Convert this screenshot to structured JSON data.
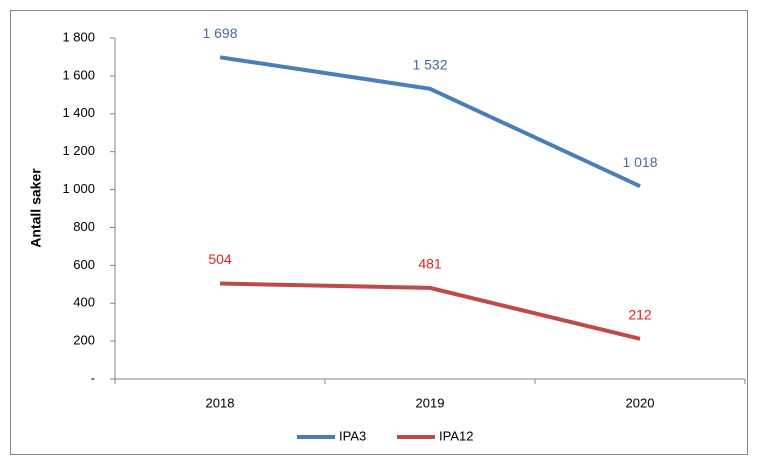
{
  "chart_data": {
    "type": "line",
    "y_label": "Antall saker",
    "categories": [
      "2018",
      "2019",
      "2020"
    ],
    "series": [
      {
        "name": "IPA3",
        "color": "#4a7ebb",
        "label_color": "#4a6a9a",
        "values": [
          1698,
          1532,
          1018
        ],
        "value_labels": [
          "1 698",
          "1 532",
          "1 018"
        ]
      },
      {
        "name": "IPA12",
        "color": "#be4b48",
        "label_color": "#e02020",
        "values": [
          504,
          481,
          212
        ],
        "value_labels": [
          "504",
          "481",
          "212"
        ]
      }
    ],
    "ylim": [
      0,
      1800
    ],
    "yticks": [
      {
        "value": 0,
        "label": "-"
      },
      200,
      400,
      600,
      800,
      {
        "value": 1000,
        "label": "1 000"
      },
      {
        "value": 1200,
        "label": "1 200"
      },
      {
        "value": 1400,
        "label": "1 400"
      },
      {
        "value": 1600,
        "label": "1 600"
      },
      {
        "value": 1800,
        "label": "1 800"
      }
    ],
    "grid": false,
    "legend": "bottom"
  }
}
